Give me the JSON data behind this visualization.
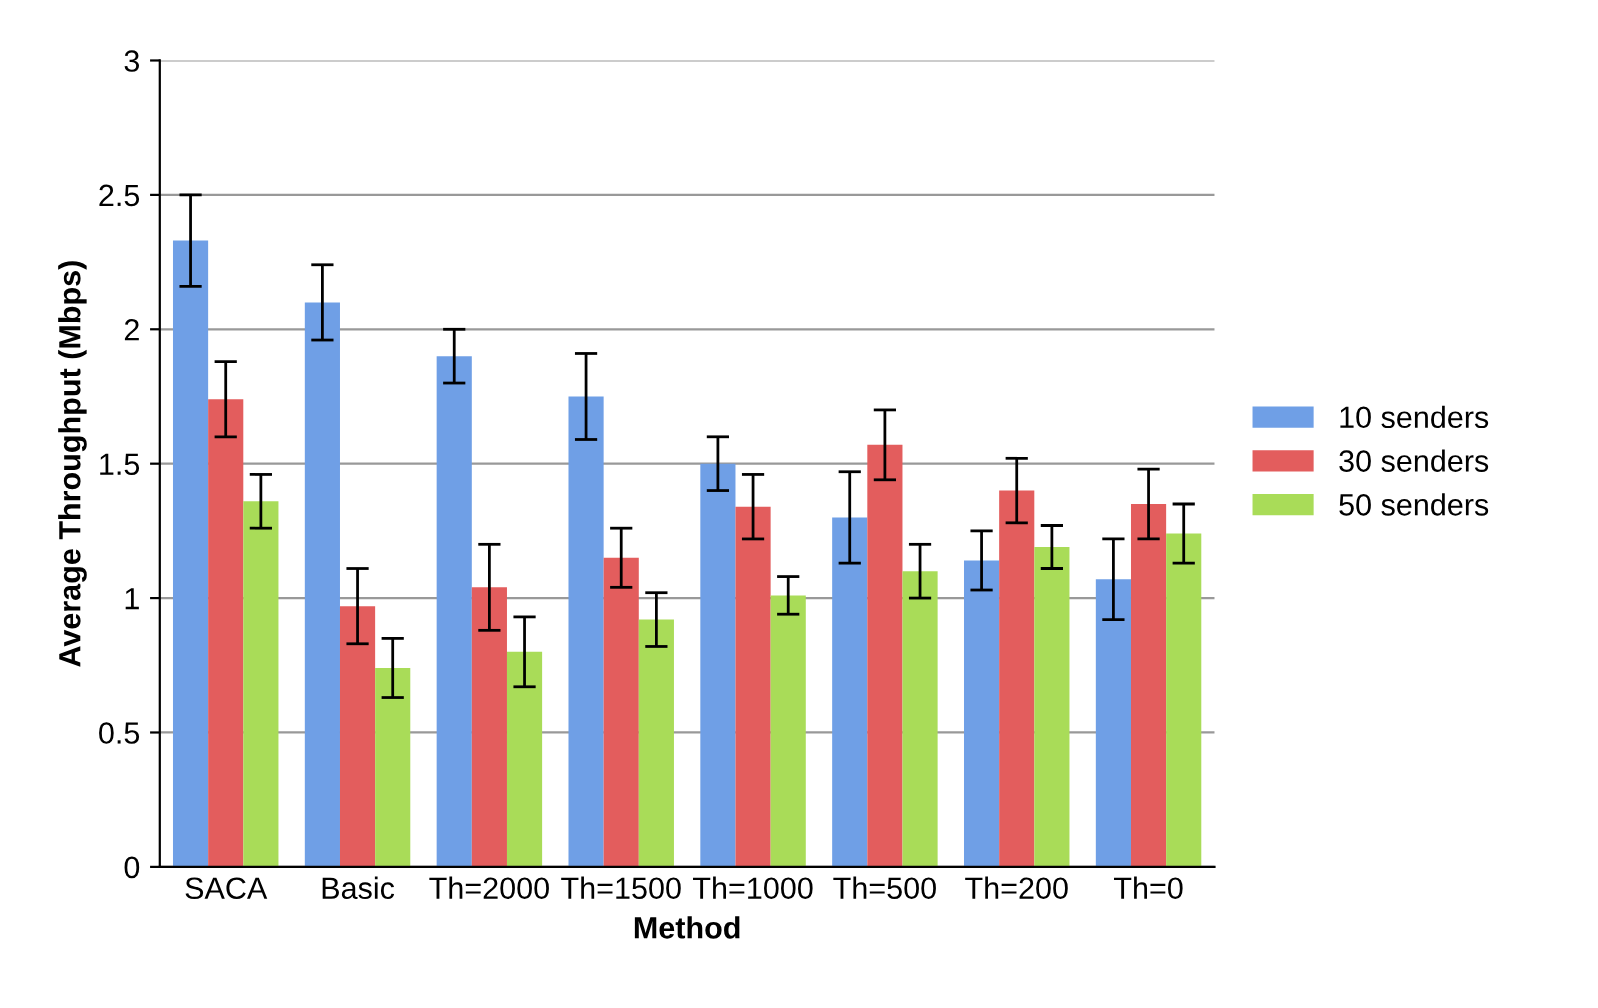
{
  "chart_data": {
    "type": "bar",
    "xlabel": "Method",
    "ylabel": "Average Throughput (Mbps)",
    "categories": [
      "SACA",
      "Basic",
      "Th=2000",
      "Th=1500",
      "Th=1000",
      "Th=500",
      "Th=200",
      "Th=0"
    ],
    "series": [
      {
        "name": "10 senders",
        "color": "#6f9fe6",
        "values": [
          2.33,
          2.1,
          1.9,
          1.75,
          1.5,
          1.3,
          1.14,
          1.07
        ],
        "errors": [
          0.17,
          0.14,
          0.1,
          0.16,
          0.1,
          0.17,
          0.11,
          0.15
        ]
      },
      {
        "name": "30 senders",
        "color": "#e35d5d",
        "values": [
          1.74,
          0.97,
          1.04,
          1.15,
          1.34,
          1.57,
          1.4,
          1.35
        ],
        "errors": [
          0.14,
          0.14,
          0.16,
          0.11,
          0.12,
          0.13,
          0.12,
          0.13
        ]
      },
      {
        "name": "50 senders",
        "color": "#a9dc58",
        "values": [
          1.36,
          0.74,
          0.8,
          0.92,
          1.01,
          1.1,
          1.19,
          1.24
        ],
        "errors": [
          0.1,
          0.11,
          0.13,
          0.1,
          0.07,
          0.1,
          0.08,
          0.11
        ]
      }
    ],
    "ylim": [
      0,
      3
    ],
    "yticks": [
      0,
      0.5,
      1,
      1.5,
      2,
      2.5,
      3
    ],
    "grid": "y",
    "legend": "right"
  }
}
